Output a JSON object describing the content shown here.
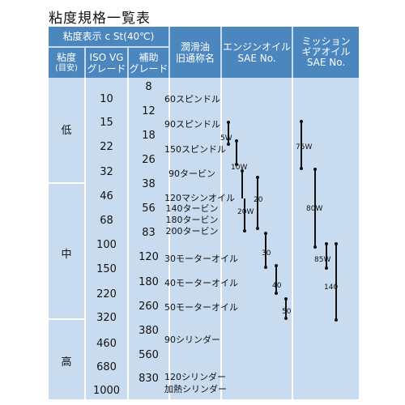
{
  "title": "粘度規格一覧表",
  "header": {
    "viscosity_main": "粘度表示 c St(40℃)",
    "col_level_1": "粘度",
    "col_level_2": "(目安)",
    "col_iso_1": "ISO VG",
    "col_iso_2": "グレード",
    "col_aux_1": "補助",
    "col_aux_2": "グレード",
    "col_oil_1": "潤滑油",
    "col_oil_2": "旧通称名",
    "col_engine_1": "エンジンオイル",
    "col_engine_2": "SAE No.",
    "col_mission_1": "ミッション",
    "col_mission_2": "ギアオイル",
    "col_mission_3": "SAE No."
  },
  "groups": [
    "低",
    "中",
    "高"
  ],
  "iso_vg": [
    "10",
    "15",
    "22",
    "32",
    "46",
    "68",
    "100",
    "150",
    "220",
    "320",
    "460",
    "680",
    "1000"
  ],
  "aux_grades": [
    "8",
    "12",
    "18",
    "26",
    "38",
    "56",
    "83",
    "120",
    "180",
    "260",
    "380",
    "560",
    "830"
  ],
  "oils": [
    "60スピンドル",
    "90スピンドル",
    "150スピンドル",
    "90タービン",
    "120マシンオイル",
    "140タービン",
    "180タービン",
    "200タービン",
    "30モーターオイル",
    "40モーターオイル",
    "50モーターオイル",
    "90シリンダー",
    "120シリンダー",
    "加熱シリンダー"
  ],
  "engine_sae": [
    "5W",
    "10W",
    "20W",
    "20",
    "30",
    "40",
    "50"
  ],
  "gear_sae": [
    "75W",
    "80W",
    "85W",
    "140"
  ]
}
